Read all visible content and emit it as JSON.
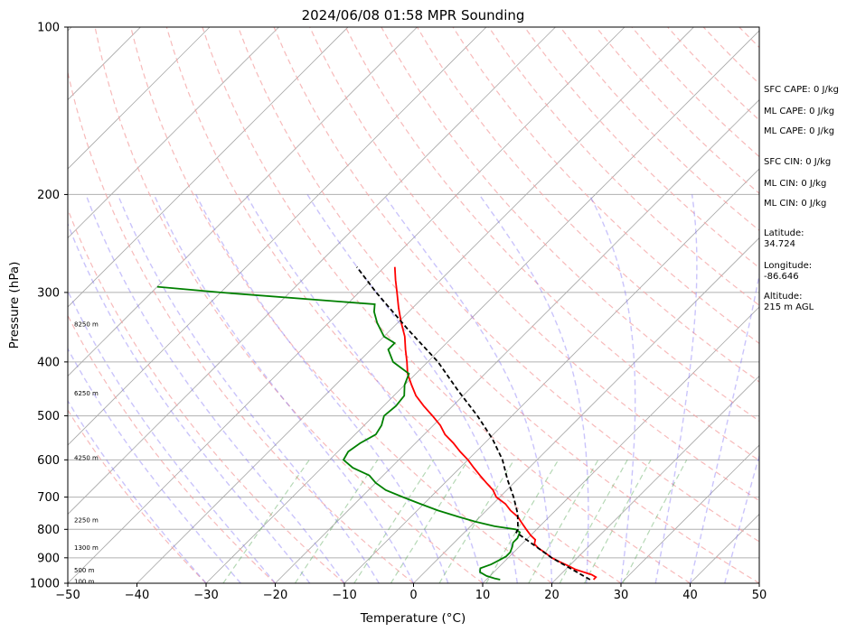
{
  "chart_data": {
    "type": "line",
    "title": "2024/06/08 01:58 MPR Sounding",
    "xlabel": "Temperature (°C)",
    "ylabel": "Pressure (hPa)",
    "xlim": [
      -50,
      50
    ],
    "ylim": [
      1000,
      100
    ],
    "y_scale": "log",
    "x_ticks": [
      "−50",
      "−40",
      "−30",
      "−20",
      "−10",
      "0",
      "10",
      "20",
      "30",
      "40",
      "50"
    ],
    "y_ticks": [
      "100",
      "200",
      "300",
      "400",
      "500",
      "600",
      "700",
      "800",
      "900",
      "1000"
    ],
    "y_tick_values": [
      100,
      200,
      300,
      400,
      500,
      600,
      700,
      800,
      900,
      1000
    ],
    "grid": true,
    "height_labels": [
      {
        "text": "100 m",
        "p": 992
      },
      {
        "text": "500 m",
        "p": 948
      },
      {
        "text": "1300 m",
        "p": 862
      },
      {
        "text": "2250 m",
        "p": 770
      },
      {
        "text": "4250 m",
        "p": 595
      },
      {
        "text": "6250 m",
        "p": 455
      },
      {
        "text": "8250 m",
        "p": 342
      }
    ],
    "series": [
      {
        "role": "temperature",
        "color": "#ff0000",
        "p": [
          985,
          975,
          965,
          955,
          945,
          930,
          915,
          900,
          880,
          865,
          850,
          835,
          820,
          800,
          780,
          760,
          740,
          720,
          700,
          680,
          660,
          640,
          620,
          600,
          580,
          560,
          540,
          520,
          500,
          480,
          460,
          440,
          420,
          400,
          380,
          360,
          340,
          320,
          300,
          285,
          270
        ],
        "t": [
          25.5,
          25.5,
          24.5,
          23.0,
          21.5,
          19.8,
          18.0,
          16.3,
          14.5,
          13.0,
          11.8,
          11.3,
          10.0,
          8.5,
          7.0,
          5.5,
          3.5,
          1.8,
          -0.5,
          -2.0,
          -4.0,
          -6.0,
          -8.0,
          -10.0,
          -12.3,
          -14.5,
          -17.0,
          -19.0,
          -21.5,
          -24.2,
          -26.8,
          -29.0,
          -31.2,
          -33.0,
          -35.0,
          -37.0,
          -39.5,
          -42.0,
          -44.5,
          -46.5,
          -48.5
        ]
      },
      {
        "role": "dewpoint",
        "color": "#008000",
        "p": [
          985,
          980,
          970,
          955,
          940,
          925,
          910,
          895,
          880,
          860,
          845,
          830,
          810,
          800,
          790,
          775,
          760,
          740,
          720,
          700,
          680,
          660,
          640,
          620,
          600,
          580,
          560,
          540,
          520,
          500,
          480,
          460,
          440,
          420,
          400,
          380,
          370,
          360,
          340,
          325,
          315,
          300,
          293
        ],
        "td": [
          12.0,
          11.0,
          9.5,
          8.0,
          7.5,
          8.5,
          9.0,
          9.5,
          9.5,
          9.0,
          8.5,
          8.5,
          8.0,
          7.0,
          3.5,
          0.0,
          -3.0,
          -7.0,
          -10.5,
          -14.0,
          -17.5,
          -20.0,
          -22.0,
          -25.5,
          -28.0,
          -28.5,
          -28.0,
          -27.0,
          -27.5,
          -28.5,
          -28.2,
          -28.5,
          -30.0,
          -31.0,
          -35.0,
          -37.5,
          -37.5,
          -40.0,
          -43.0,
          -45.0,
          -46.0,
          -70.0,
          -80.0
        ]
      },
      {
        "role": "parcel",
        "color": "#000000",
        "style": "dashed",
        "p": [
          985,
          900,
          850,
          820,
          810,
          800,
          750,
          700,
          650,
          600,
          550,
          500,
          450,
          400,
          350,
          300,
          270
        ],
        "t": [
          25.0,
          16.3,
          11.5,
          8.5,
          7.5,
          7.3,
          5.0,
          2.0,
          -1.5,
          -5.0,
          -9.5,
          -15.0,
          -21.5,
          -28.5,
          -37.5,
          -47.5,
          -54.0
        ]
      }
    ]
  },
  "sidebar": {
    "sfc_cape": "SFC CAPE: 0 J/kg",
    "ml_cape_1": "ML CAPE: 0 J/kg",
    "ml_cape_2": "ML CAPE: 0 J/kg",
    "sfc_cin": "SFC CIN: 0 J/kg",
    "ml_cin_1": "ML CIN: 0 J/kg",
    "ml_cin_2": "ML CIN: 0 J/kg",
    "lat_label": "Latitude:",
    "lat_value": "34.724",
    "lon_label": "Longitude:",
    "lon_value": "-86.646",
    "alt_label": "Altitude:",
    "alt_value": "215 m AGL"
  }
}
